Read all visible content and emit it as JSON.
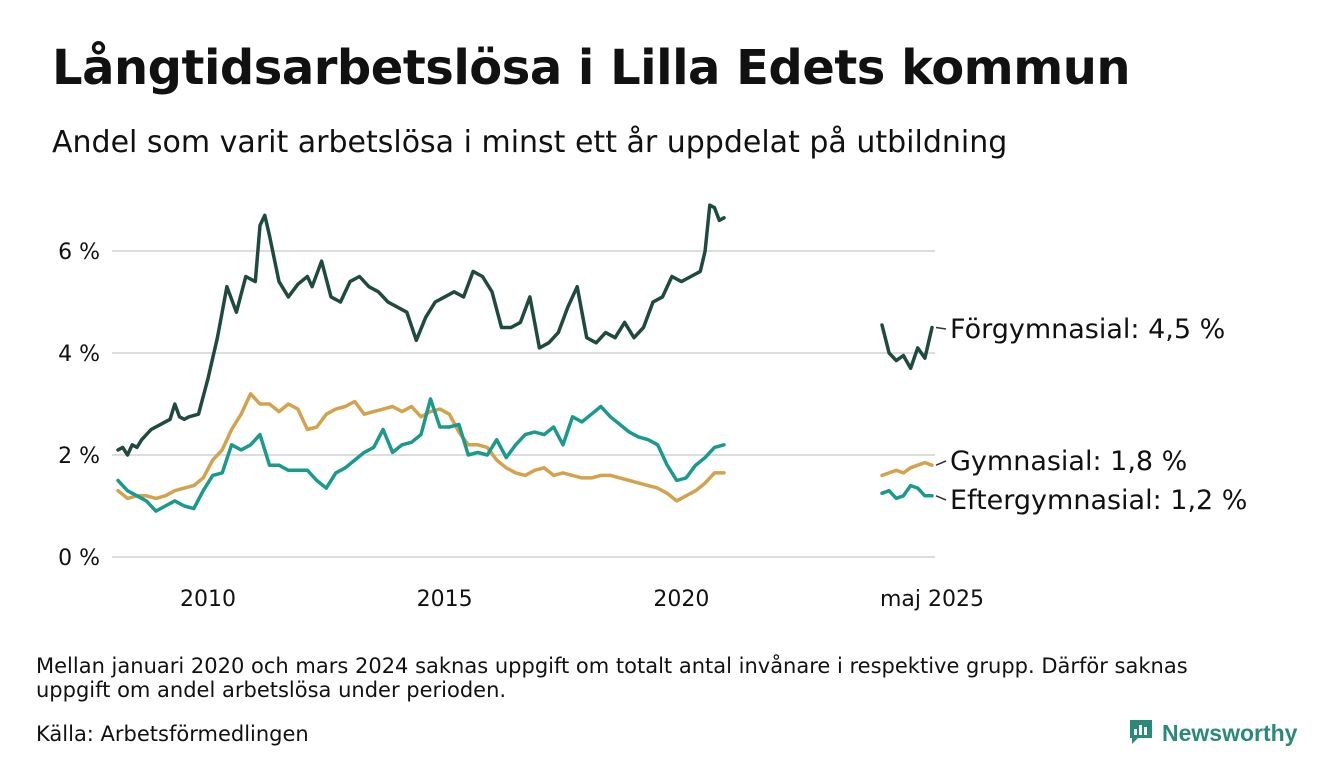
{
  "title": "Långtidsarbetslösa i Lilla Edets kommun",
  "subtitle": "Andel som varit arbetslösa i minst ett år uppdelat på utbildning",
  "footnote": "Mellan januari 2020 och mars 2024 saknas uppgift om totalt antal invånare i respektive grupp. Därför saknas uppgift om andel arbetslösa under perioden.",
  "source": "Källa: Arbetsförmedlingen",
  "brand": "Newsworthy",
  "colors": {
    "forgymnasial": "#1f4a40",
    "gymnasial": "#d4a24c",
    "eftergymnasial": "#1a9a8a",
    "gridline": "#dddddd",
    "brand": "#2a8a7a"
  },
  "chart_data": {
    "type": "line",
    "ylim": [
      0,
      7
    ],
    "yticks": [
      0,
      2,
      4,
      6
    ],
    "ytick_labels": [
      "0 %",
      "2 %",
      "4 %",
      "6 %"
    ],
    "xticks": [
      2010,
      2015,
      2020
    ],
    "xtick_labels": [
      "2010",
      "2015",
      "2020"
    ],
    "latest_label": "maj 2025",
    "grid": true,
    "series": [
      {
        "key": "forgymnasial",
        "name": "Förgymnasial",
        "end_label": "Förgymnasial: 4,5 %",
        "main": {
          "x": [
            2008.1,
            2008.2,
            2008.3,
            2008.4,
            2008.5,
            2008.6,
            2008.8,
            2009.0,
            2009.2,
            2009.3,
            2009.4,
            2009.5,
            2009.6,
            2009.8,
            2010.0,
            2010.2,
            2010.4,
            2010.6,
            2010.8,
            2011.0,
            2011.1,
            2011.2,
            2011.3,
            2011.5,
            2011.7,
            2011.9,
            2012.1,
            2012.2,
            2012.4,
            2012.6,
            2012.8,
            2013.0,
            2013.2,
            2013.4,
            2013.6,
            2013.8,
            2014.0,
            2014.2,
            2014.4,
            2014.6,
            2014.8,
            2015.0,
            2015.2,
            2015.4,
            2015.6,
            2015.8,
            2016.0,
            2016.2,
            2016.4,
            2016.6,
            2016.8,
            2017.0,
            2017.2,
            2017.4,
            2017.6,
            2017.8,
            2018.0,
            2018.2,
            2018.4,
            2018.6,
            2018.8,
            2019.0,
            2019.2,
            2019.4,
            2019.6,
            2019.8,
            2020.0,
            2020.2,
            2020.4,
            2020.5,
            2020.6,
            2020.7,
            2020.8,
            2020.9
          ],
          "y": [
            2.1,
            2.15,
            2.0,
            2.2,
            2.15,
            2.3,
            2.5,
            2.6,
            2.7,
            3.0,
            2.75,
            2.7,
            2.75,
            2.8,
            3.5,
            4.3,
            5.3,
            4.8,
            5.5,
            5.4,
            6.5,
            6.7,
            6.3,
            5.4,
            5.1,
            5.35,
            5.5,
            5.3,
            5.8,
            5.1,
            5.0,
            5.4,
            5.5,
            5.3,
            5.2,
            5.0,
            4.9,
            4.8,
            4.25,
            4.7,
            5.0,
            5.1,
            5.2,
            5.1,
            5.6,
            5.5,
            5.2,
            4.5,
            4.5,
            4.6,
            5.1,
            4.1,
            4.2,
            4.4,
            4.9,
            5.3,
            4.3,
            4.2,
            4.4,
            4.3,
            4.6,
            4.3,
            4.5,
            5.0,
            5.1,
            5.5,
            5.4,
            5.5,
            5.6,
            6.0,
            6.9,
            6.85,
            6.6,
            6.65
          ]
        },
        "latest": {
          "x": [
            2024.3,
            2024.45,
            2024.6,
            2024.75,
            2024.9,
            2025.05,
            2025.2,
            2025.35
          ],
          "y": [
            4.55,
            4.0,
            3.85,
            3.95,
            3.7,
            4.1,
            3.9,
            4.5
          ]
        }
      },
      {
        "key": "gymnasial",
        "name": "Gymnasial",
        "end_label": "Gymnasial: 1,8 %",
        "main": {
          "x": [
            2008.1,
            2008.3,
            2008.5,
            2008.7,
            2008.9,
            2009.1,
            2009.3,
            2009.5,
            2009.7,
            2009.9,
            2010.1,
            2010.3,
            2010.5,
            2010.7,
            2010.9,
            2011.1,
            2011.3,
            2011.5,
            2011.7,
            2011.9,
            2012.1,
            2012.3,
            2012.5,
            2012.7,
            2012.9,
            2013.1,
            2013.3,
            2013.5,
            2013.7,
            2013.9,
            2014.1,
            2014.3,
            2014.5,
            2014.7,
            2014.9,
            2015.1,
            2015.3,
            2015.5,
            2015.7,
            2015.9,
            2016.1,
            2016.3,
            2016.5,
            2016.7,
            2016.9,
            2017.1,
            2017.3,
            2017.5,
            2017.7,
            2017.9,
            2018.1,
            2018.3,
            2018.5,
            2018.7,
            2018.9,
            2019.1,
            2019.3,
            2019.5,
            2019.7,
            2019.9,
            2020.1,
            2020.3,
            2020.5,
            2020.7,
            2020.9
          ],
          "y": [
            1.3,
            1.15,
            1.2,
            1.2,
            1.15,
            1.2,
            1.3,
            1.35,
            1.4,
            1.55,
            1.9,
            2.1,
            2.5,
            2.8,
            3.2,
            3.0,
            3.0,
            2.85,
            3.0,
            2.9,
            2.5,
            2.55,
            2.8,
            2.9,
            2.95,
            3.05,
            2.8,
            2.85,
            2.9,
            2.95,
            2.85,
            2.95,
            2.75,
            2.85,
            2.9,
            2.8,
            2.45,
            2.2,
            2.2,
            2.15,
            1.9,
            1.75,
            1.65,
            1.6,
            1.7,
            1.75,
            1.6,
            1.65,
            1.6,
            1.55,
            1.55,
            1.6,
            1.6,
            1.55,
            1.5,
            1.45,
            1.4,
            1.35,
            1.25,
            1.1,
            1.2,
            1.3,
            1.45,
            1.65,
            1.65
          ]
        },
        "latest": {
          "x": [
            2024.3,
            2024.45,
            2024.6,
            2024.75,
            2024.9,
            2025.05,
            2025.2,
            2025.35
          ],
          "y": [
            1.6,
            1.65,
            1.7,
            1.65,
            1.75,
            1.8,
            1.85,
            1.8
          ]
        }
      },
      {
        "key": "eftergymnasial",
        "name": "Eftergymnasial",
        "end_label": "Eftergymnasial: 1,2 %",
        "main": {
          "x": [
            2008.1,
            2008.3,
            2008.5,
            2008.7,
            2008.9,
            2009.1,
            2009.3,
            2009.5,
            2009.7,
            2009.9,
            2010.1,
            2010.3,
            2010.5,
            2010.7,
            2010.9,
            2011.1,
            2011.3,
            2011.5,
            2011.7,
            2011.9,
            2012.1,
            2012.3,
            2012.5,
            2012.7,
            2012.9,
            2013.1,
            2013.3,
            2013.5,
            2013.7,
            2013.9,
            2014.1,
            2014.3,
            2014.5,
            2014.7,
            2014.9,
            2015.1,
            2015.3,
            2015.5,
            2015.7,
            2015.9,
            2016.1,
            2016.3,
            2016.5,
            2016.7,
            2016.9,
            2017.1,
            2017.3,
            2017.5,
            2017.7,
            2017.9,
            2018.1,
            2018.3,
            2018.5,
            2018.7,
            2018.9,
            2019.1,
            2019.3,
            2019.5,
            2019.7,
            2019.9,
            2020.1,
            2020.3,
            2020.5,
            2020.7,
            2020.9
          ],
          "y": [
            1.5,
            1.3,
            1.2,
            1.1,
            0.9,
            1.0,
            1.1,
            1.0,
            0.95,
            1.3,
            1.6,
            1.65,
            2.2,
            2.1,
            2.2,
            2.4,
            1.8,
            1.8,
            1.7,
            1.7,
            1.7,
            1.5,
            1.35,
            1.65,
            1.75,
            1.9,
            2.05,
            2.15,
            2.5,
            2.05,
            2.2,
            2.25,
            2.4,
            3.1,
            2.55,
            2.55,
            2.6,
            2.0,
            2.05,
            2.0,
            2.3,
            1.95,
            2.2,
            2.4,
            2.45,
            2.4,
            2.55,
            2.2,
            2.75,
            2.65,
            2.8,
            2.95,
            2.75,
            2.6,
            2.45,
            2.35,
            2.3,
            2.2,
            1.8,
            1.5,
            1.55,
            1.8,
            1.95,
            2.15,
            2.2
          ]
        },
        "latest": {
          "x": [
            2024.3,
            2024.45,
            2024.6,
            2024.75,
            2024.9,
            2025.05,
            2025.2,
            2025.35
          ],
          "y": [
            1.25,
            1.3,
            1.15,
            1.2,
            1.4,
            1.35,
            1.2,
            1.2
          ]
        }
      }
    ]
  }
}
